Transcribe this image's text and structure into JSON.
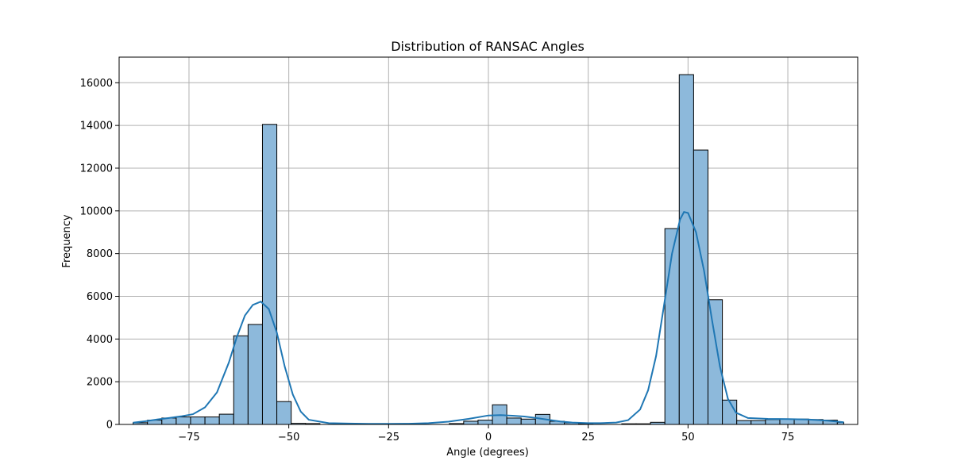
{
  "chart_data": {
    "type": "bar",
    "title": "Distribution of RANSAC Angles",
    "xlabel": "Angle (degrees)",
    "ylabel": "Frequency",
    "xlim": [
      -92.5,
      92.5
    ],
    "ylim": [
      0,
      17200
    ],
    "xticks": [
      -75,
      -50,
      -25,
      0,
      25,
      50,
      75
    ],
    "xtick_labels": [
      "−75",
      "−50",
      "−25",
      "0",
      "25",
      "50",
      "75"
    ],
    "yticks": [
      0,
      2000,
      4000,
      6000,
      8000,
      10000,
      12000,
      14000,
      16000
    ],
    "ytick_labels": [
      "0",
      "2000",
      "4000",
      "6000",
      "8000",
      "10000",
      "12000",
      "14000",
      "16000"
    ],
    "grid": true,
    "bar_color": "#8db9db",
    "edge_color": "#000000",
    "kde_color": "#1f77b4",
    "bins": [
      {
        "x0": -89.0,
        "x1": -85.4,
        "value": 80
      },
      {
        "x0": -85.4,
        "x1": -81.8,
        "value": 200
      },
      {
        "x0": -81.8,
        "x1": -78.2,
        "value": 300
      },
      {
        "x0": -78.2,
        "x1": -74.6,
        "value": 350
      },
      {
        "x0": -74.6,
        "x1": -71.0,
        "value": 350
      },
      {
        "x0": -71.0,
        "x1": -67.4,
        "value": 350
      },
      {
        "x0": -67.4,
        "x1": -63.8,
        "value": 480
      },
      {
        "x0": -63.8,
        "x1": -60.2,
        "value": 4150
      },
      {
        "x0": -60.2,
        "x1": -56.6,
        "value": 4680
      },
      {
        "x0": -56.6,
        "x1": -53.0,
        "value": 14050
      },
      {
        "x0": -53.0,
        "x1": -49.4,
        "value": 1070
      },
      {
        "x0": -49.4,
        "x1": -45.8,
        "value": 50
      },
      {
        "x0": -45.8,
        "x1": -42.2,
        "value": 40
      },
      {
        "x0": -9.8,
        "x1": -6.2,
        "value": 40
      },
      {
        "x0": -6.2,
        "x1": -2.6,
        "value": 150
      },
      {
        "x0": -2.6,
        "x1": 1.0,
        "value": 200
      },
      {
        "x0": 1.0,
        "x1": 4.6,
        "value": 920
      },
      {
        "x0": 4.6,
        "x1": 8.2,
        "value": 300
      },
      {
        "x0": 8.2,
        "x1": 11.8,
        "value": 250
      },
      {
        "x0": 11.8,
        "x1": 15.4,
        "value": 470
      },
      {
        "x0": 15.4,
        "x1": 19.0,
        "value": 150
      },
      {
        "x0": 19.0,
        "x1": 22.6,
        "value": 80
      },
      {
        "x0": 22.6,
        "x1": 26.2,
        "value": 30
      },
      {
        "x0": 33.4,
        "x1": 37.0,
        "value": 30
      },
      {
        "x0": 37.0,
        "x1": 40.6,
        "value": 30
      },
      {
        "x0": 40.6,
        "x1": 44.2,
        "value": 100
      },
      {
        "x0": 44.2,
        "x1": 47.8,
        "value": 9170
      },
      {
        "x0": 47.8,
        "x1": 51.4,
        "value": 16380
      },
      {
        "x0": 51.4,
        "x1": 55.0,
        "value": 12850
      },
      {
        "x0": 55.0,
        "x1": 58.6,
        "value": 5840
      },
      {
        "x0": 58.6,
        "x1": 62.2,
        "value": 1140
      },
      {
        "x0": 62.2,
        "x1": 65.8,
        "value": 180
      },
      {
        "x0": 65.8,
        "x1": 69.4,
        "value": 180
      },
      {
        "x0": 69.4,
        "x1": 73.0,
        "value": 230
      },
      {
        "x0": 73.0,
        "x1": 76.6,
        "value": 250
      },
      {
        "x0": 76.6,
        "x1": 80.2,
        "value": 250
      },
      {
        "x0": 80.2,
        "x1": 83.8,
        "value": 230
      },
      {
        "x0": 83.8,
        "x1": 87.4,
        "value": 200
      },
      {
        "x0": 87.4,
        "x1": 89.0,
        "value": 100
      }
    ],
    "kde": {
      "x": [
        -89,
        -86,
        -83,
        -80,
        -77,
        -74,
        -71,
        -68,
        -65,
        -63,
        -61,
        -59,
        -57,
        -55,
        -53,
        -51,
        -49,
        -47,
        -45,
        -40,
        -35,
        -30,
        -25,
        -20,
        -15,
        -10,
        -5,
        0,
        3,
        6,
        9,
        12,
        15,
        18,
        21,
        25,
        28,
        32,
        35,
        38,
        40,
        42,
        44,
        46,
        48,
        49,
        50,
        52,
        54,
        56,
        58,
        60,
        62,
        65,
        70,
        75,
        80,
        85,
        89
      ],
      "y": [
        80,
        150,
        230,
        300,
        380,
        480,
        800,
        1500,
        2900,
        4100,
        5100,
        5600,
        5750,
        5400,
        4300,
        2700,
        1400,
        600,
        220,
        60,
        40,
        30,
        30,
        35,
        60,
        130,
        260,
        420,
        440,
        410,
        370,
        300,
        220,
        140,
        90,
        60,
        60,
        90,
        200,
        700,
        1600,
        3200,
        5600,
        8000,
        9600,
        9950,
        9900,
        9000,
        7200,
        4900,
        2700,
        1200,
        550,
        300,
        260,
        250,
        230,
        180,
        100
      ]
    }
  }
}
